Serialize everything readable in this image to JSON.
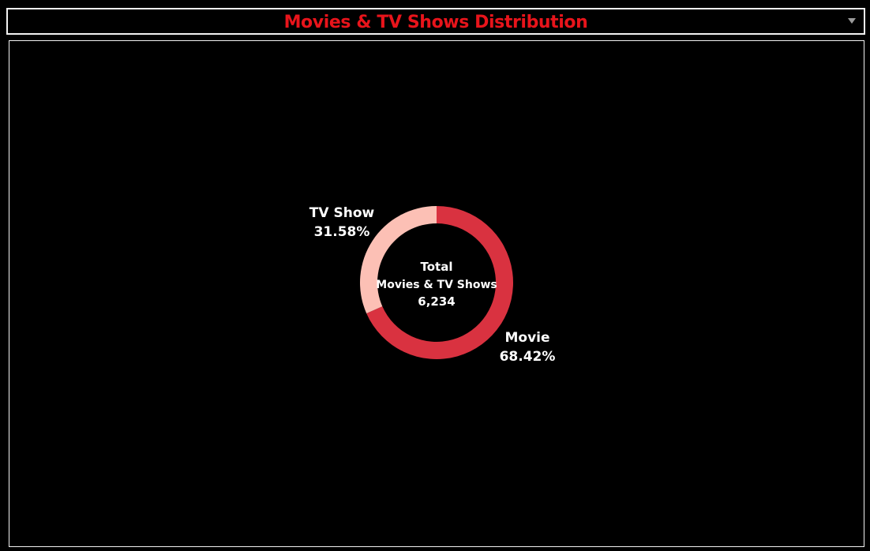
{
  "dashboard": {
    "title": "Movies & TV Shows Distribution"
  },
  "colors": {
    "background": "#000000",
    "title": "#e8141b",
    "movie": "#d93240",
    "tv_show": "#fcc0b5",
    "text": "#ffffff"
  },
  "chart_data": {
    "type": "pie",
    "style": "donut",
    "center_label": {
      "line1": "Total",
      "line2": "Movies & TV Shows",
      "value": "6,234"
    },
    "slices": [
      {
        "name": "Movie",
        "value": 68.42,
        "label": "68.42%",
        "color": "#d93240"
      },
      {
        "name": "TV Show",
        "value": 31.58,
        "label": "31.58%",
        "color": "#fcc0b5"
      }
    ]
  }
}
